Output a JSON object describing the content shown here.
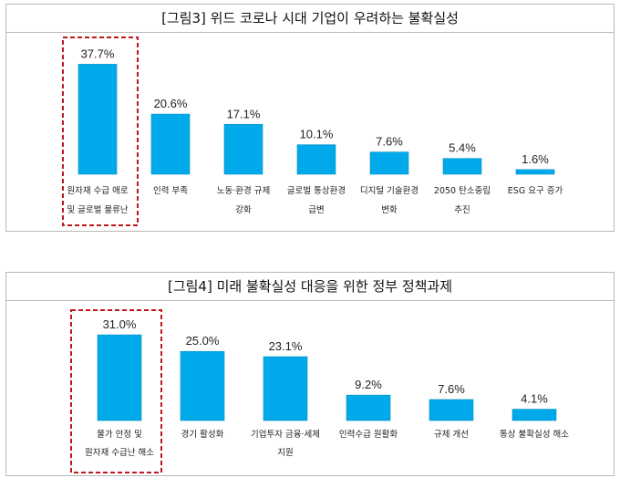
{
  "charts": [
    {
      "title": "[그림3] 위드 코로나 시대 기업이 우려하는 불확실성",
      "chart_data": {
        "type": "bar",
        "categories": [
          [
            "원자재 수급 애로",
            "및 글로벌 물류난"
          ],
          [
            "인력 부족"
          ],
          [
            "노동·환경 규제",
            "강화"
          ],
          [
            "글로벌 통상환경",
            "급변"
          ],
          [
            "디지털 기술환경",
            "변화"
          ],
          [
            "2050 탄소중립",
            "추진"
          ],
          [
            "ESG 요구 증가"
          ]
        ],
        "values": [
          37.7,
          20.6,
          17.1,
          10.1,
          7.6,
          5.4,
          1.6
        ],
        "value_labels": [
          "37.7%",
          "20.6%",
          "17.1%",
          "10.1%",
          "7.6%",
          "5.4%",
          "1.6%"
        ],
        "highlight_index": 0,
        "ylim": [
          0,
          40
        ]
      }
    },
    {
      "title": "[그림4] 미래 불확실성 대응을 위한 정부 정책과제",
      "chart_data": {
        "type": "bar",
        "categories": [
          [
            "물가 안정 및",
            "원자재 수급난 해소"
          ],
          [
            "경기 활성화"
          ],
          [
            "기업투자 금융·세제",
            "지원"
          ],
          [
            "인력수급 원활화"
          ],
          [
            "규제 개선"
          ],
          [
            "통상 불확실성 해소"
          ]
        ],
        "values": [
          31.0,
          25.0,
          23.1,
          9.2,
          7.6,
          4.1
        ],
        "value_labels": [
          "31.0%",
          "25.0%",
          "23.1%",
          "9.2%",
          "7.6%",
          "4.1%"
        ],
        "highlight_index": 0,
        "ylim": [
          0,
          33
        ]
      }
    }
  ],
  "colors": {
    "bar": "#00a9ea",
    "bar_edge": "#0b8fc4",
    "highlight": "#c0171e"
  }
}
